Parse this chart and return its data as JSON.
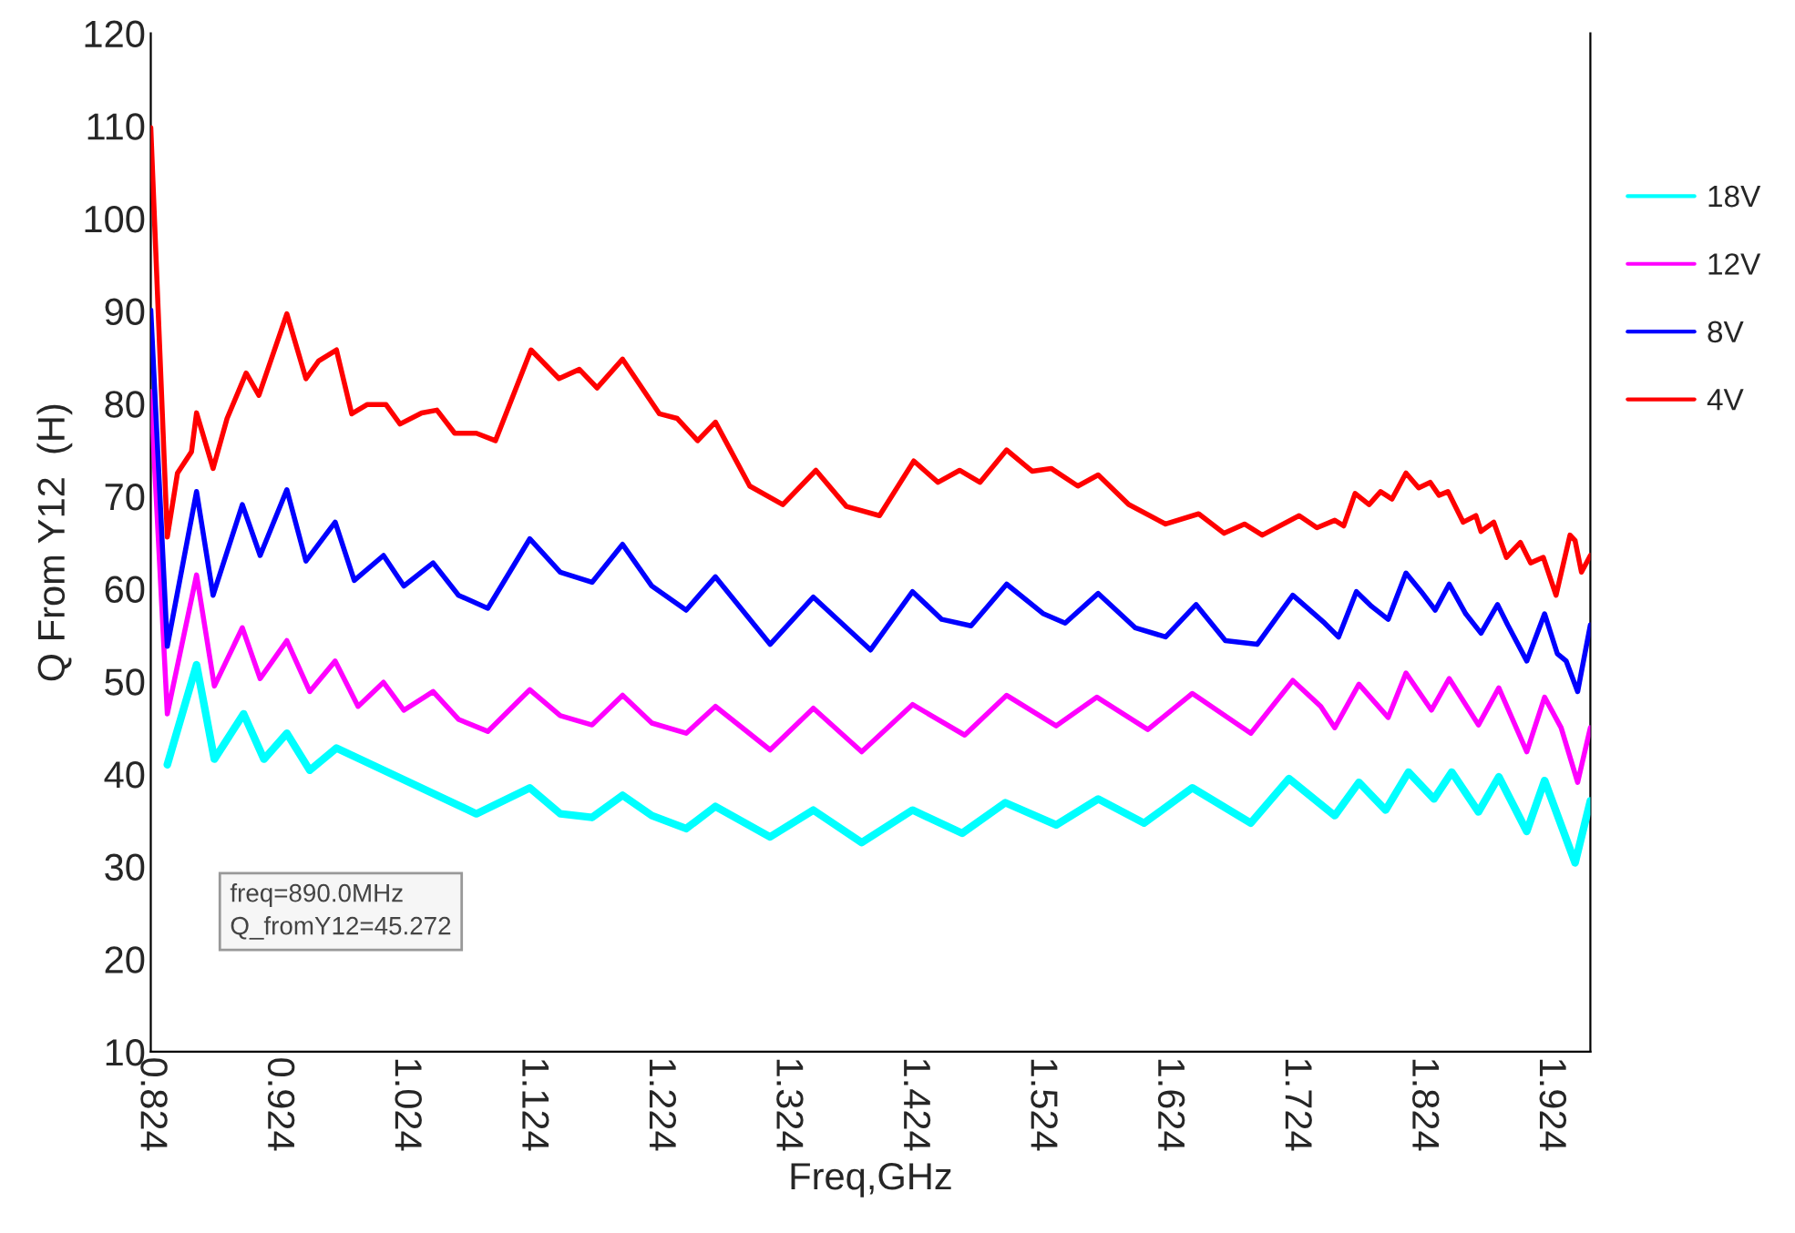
{
  "chart_data": {
    "type": "line",
    "xlabel": "Freq,GHz",
    "ylabel": "Q From Y12  (H)",
    "xlim": [
      0.824,
      1.956
    ],
    "ylim": [
      10,
      120
    ],
    "xticks": [
      {
        "value": 0.824,
        "label": "0.824"
      },
      {
        "value": 0.924,
        "label": "0.924"
      },
      {
        "value": 1.024,
        "label": "1.024"
      },
      {
        "value": 1.124,
        "label": "1.124"
      },
      {
        "value": 1.224,
        "label": "1.224"
      },
      {
        "value": 1.324,
        "label": "1.324"
      },
      {
        "value": 1.424,
        "label": "1.424"
      },
      {
        "value": 1.524,
        "label": "1.524"
      },
      {
        "value": 1.624,
        "label": "1.624"
      },
      {
        "value": 1.724,
        "label": "1.724"
      },
      {
        "value": 1.824,
        "label": "1.824"
      },
      {
        "value": 1.924,
        "label": "1.924"
      }
    ],
    "yticks": [
      10,
      20,
      30,
      40,
      50,
      60,
      70,
      80,
      90,
      100,
      110,
      120
    ],
    "grid": false,
    "legend": "right",
    "marker": "none",
    "line_style": "solid",
    "annotations": [
      "freq=890.0MHz\nQ_fromY12=45.272"
    ],
    "series": [
      {
        "name": "18V",
        "color": "#00ffff",
        "x": [
          0.837,
          0.86,
          0.874,
          0.897,
          0.913,
          0.931,
          0.949,
          0.97,
          1.08,
          1.122,
          1.146,
          1.171,
          1.195,
          1.218,
          1.245,
          1.268,
          1.311,
          1.345,
          1.383,
          1.423,
          1.462,
          1.496,
          1.536,
          1.569,
          1.605,
          1.643,
          1.689,
          1.719,
          1.755,
          1.774,
          1.795,
          1.813,
          1.833,
          1.847,
          1.868,
          1.884,
          1.906,
          1.92,
          1.944,
          1.956
        ],
        "values": [
          41.0,
          51.8,
          41.6,
          46.5,
          41.6,
          44.4,
          40.4,
          42.8,
          35.7,
          38.5,
          35.7,
          35.3,
          37.7,
          35.5,
          34.1,
          36.5,
          33.2,
          36.1,
          32.6,
          36.1,
          33.6,
          36.9,
          34.5,
          37.3,
          34.7,
          38.5,
          34.7,
          39.5,
          35.5,
          39.1,
          36.1,
          40.2,
          37.3,
          40.2,
          35.9,
          39.7,
          33.8,
          39.3,
          30.4,
          37.1
        ]
      },
      {
        "name": "12V",
        "color": "#ff00ff",
        "x": [
          0.824,
          0.837,
          0.86,
          0.874,
          0.896,
          0.91,
          0.931,
          0.949,
          0.969,
          0.987,
          1.007,
          1.023,
          1.046,
          1.066,
          1.089,
          1.122,
          1.146,
          1.171,
          1.195,
          1.218,
          1.245,
          1.268,
          1.311,
          1.345,
          1.383,
          1.423,
          1.464,
          1.497,
          1.536,
          1.568,
          1.608,
          1.643,
          1.689,
          1.722,
          1.744,
          1.755,
          1.774,
          1.797,
          1.811,
          1.831,
          1.845,
          1.868,
          1.884,
          1.906,
          1.92,
          1.933,
          1.946,
          1.956
        ],
        "values": [
          81.3,
          46.5,
          61.5,
          49.5,
          55.8,
          50.3,
          54.4,
          48.9,
          52.2,
          47.3,
          49.9,
          46.9,
          48.9,
          45.9,
          44.6,
          49.1,
          46.3,
          45.3,
          48.5,
          45.5,
          44.4,
          47.3,
          42.6,
          47.1,
          42.4,
          47.5,
          44.2,
          48.5,
          45.2,
          48.3,
          44.8,
          48.7,
          44.4,
          50.1,
          47.3,
          45.0,
          49.7,
          46.1,
          50.9,
          46.9,
          50.3,
          45.3,
          49.3,
          42.4,
          48.3,
          45.0,
          39.1,
          45.0
        ]
      },
      {
        "name": "8V",
        "color": "#0000ff",
        "x": [
          0.824,
          0.837,
          0.86,
          0.873,
          0.896,
          0.91,
          0.931,
          0.946,
          0.969,
          0.984,
          1.007,
          1.023,
          1.046,
          1.066,
          1.089,
          1.122,
          1.146,
          1.171,
          1.195,
          1.218,
          1.245,
          1.268,
          1.311,
          1.345,
          1.39,
          1.423,
          1.446,
          1.469,
          1.497,
          1.526,
          1.543,
          1.569,
          1.598,
          1.622,
          1.646,
          1.669,
          1.694,
          1.722,
          1.747,
          1.758,
          1.772,
          1.784,
          1.797,
          1.811,
          1.823,
          1.834,
          1.845,
          1.858,
          1.87,
          1.883,
          1.891,
          1.906,
          1.92,
          1.93,
          1.937,
          1.946,
          1.956
        ],
        "values": [
          90.1,
          53.8,
          70.5,
          59.3,
          69.1,
          63.6,
          70.7,
          63.0,
          67.2,
          60.9,
          63.6,
          60.3,
          62.8,
          59.3,
          57.9,
          65.4,
          61.8,
          60.7,
          64.8,
          60.3,
          57.7,
          61.3,
          54.0,
          59.1,
          53.4,
          59.7,
          56.7,
          56.0,
          60.5,
          57.3,
          56.3,
          59.5,
          55.8,
          54.8,
          58.3,
          54.4,
          54.0,
          59.3,
          56.3,
          54.8,
          59.7,
          58.1,
          56.7,
          61.7,
          59.7,
          57.7,
          60.5,
          57.3,
          55.2,
          58.3,
          56.1,
          52.2,
          57.3,
          53.0,
          52.2,
          48.9,
          56.1
        ]
      },
      {
        "name": "4V",
        "color": "#ff0000",
        "x": [
          0.824,
          0.837,
          0.845,
          0.856,
          0.86,
          0.873,
          0.884,
          0.899,
          0.909,
          0.931,
          0.946,
          0.956,
          0.97,
          0.982,
          0.994,
          1.009,
          1.02,
          1.037,
          1.049,
          1.063,
          1.08,
          1.095,
          1.123,
          1.145,
          1.161,
          1.175,
          1.195,
          1.224,
          1.238,
          1.254,
          1.268,
          1.295,
          1.321,
          1.347,
          1.371,
          1.397,
          1.424,
          1.443,
          1.46,
          1.476,
          1.497,
          1.517,
          1.532,
          1.553,
          1.569,
          1.593,
          1.622,
          1.648,
          1.668,
          1.684,
          1.698,
          1.727,
          1.741,
          1.755,
          1.762,
          1.771,
          1.782,
          1.791,
          1.8,
          1.811,
          1.821,
          1.83,
          1.837,
          1.844,
          1.856,
          1.866,
          1.87,
          1.88,
          1.89,
          1.901,
          1.909,
          1.919,
          1.929,
          1.94,
          1.944,
          1.949,
          1.956
        ],
        "values": [
          109.8,
          65.6,
          72.5,
          74.8,
          79.0,
          73.0,
          78.4,
          83.3,
          80.9,
          89.7,
          82.7,
          84.6,
          85.8,
          78.9,
          79.9,
          79.9,
          77.8,
          79.0,
          79.3,
          76.8,
          76.8,
          76.0,
          85.8,
          82.7,
          83.7,
          81.7,
          84.8,
          78.9,
          78.4,
          76.0,
          78.0,
          71.1,
          69.1,
          72.8,
          68.9,
          67.9,
          73.8,
          71.5,
          72.8,
          71.5,
          75.0,
          72.7,
          73.0,
          71.1,
          72.3,
          69.1,
          67.0,
          68.1,
          66.0,
          67.0,
          65.8,
          67.9,
          66.6,
          67.4,
          66.8,
          70.3,
          69.1,
          70.5,
          69.7,
          72.5,
          70.9,
          71.5,
          70.1,
          70.5,
          67.2,
          67.9,
          66.2,
          67.2,
          63.4,
          65.0,
          62.8,
          63.4,
          59.3,
          65.8,
          65.2,
          61.8,
          63.6
        ]
      }
    ]
  }
}
